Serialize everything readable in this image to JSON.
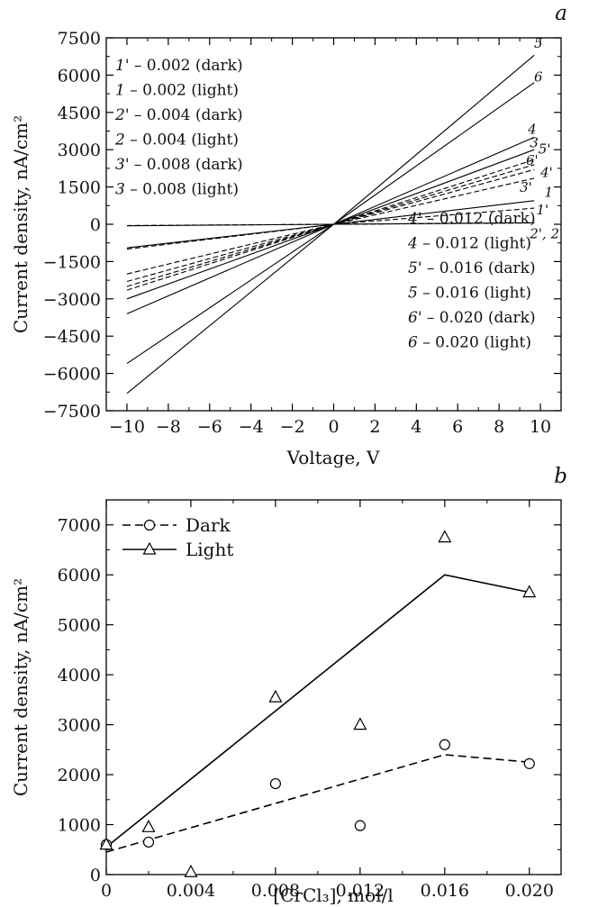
{
  "panel_a_label": "a",
  "panel_b_label": "b",
  "chart_data": [
    {
      "type": "line",
      "panel": "a",
      "xlabel": "Voltage, V",
      "ylabel": "Current density, nA/cm²",
      "xlim": [
        -11,
        11
      ],
      "ylim": [
        -7500,
        7500
      ],
      "xticks": [
        -10,
        -8,
        -6,
        -4,
        -2,
        0,
        2,
        4,
        6,
        8,
        10
      ],
      "xtick_labels": [
        "−10",
        "−8",
        "−6",
        "−4",
        "−2",
        "0",
        "2",
        "4",
        "6",
        "8",
        "10"
      ],
      "yticks": [
        -7500,
        -6000,
        -4500,
        -3000,
        -1500,
        0,
        1500,
        3000,
        4500,
        6000,
        7500
      ],
      "ytick_labels": [
        "−7500",
        "−6000",
        "−4500",
        "−3000",
        "−1500",
        "0",
        "1500",
        "3000",
        "4500",
        "6000",
        "7500"
      ],
      "legend_left": [
        {
          "curve": "1'",
          "text": " – 0.002 (dark)"
        },
        {
          "curve": "1",
          "text": " – 0.002 (light)"
        },
        {
          "curve": "2'",
          "text": " – 0.004 (dark)"
        },
        {
          "curve": "2",
          "text": " – 0.004 (light)"
        },
        {
          "curve": "3'",
          "text": " – 0.008 (dark)"
        },
        {
          "curve": "3",
          "text": " – 0.008 (light)"
        }
      ],
      "legend_right": [
        {
          "curve": "4'",
          "text": " – 0.012 (dark)"
        },
        {
          "curve": "4",
          "text": " – 0.012 (light)"
        },
        {
          "curve": "5'",
          "text": " – 0.016 (dark)"
        },
        {
          "curve": "5",
          "text": " – 0.016 (light)"
        },
        {
          "curve": "6'",
          "text": " – 0.020 (dark)"
        },
        {
          "curve": "6",
          "text": " – 0.020 (light)"
        }
      ],
      "series": [
        {
          "name": "1'",
          "style": "dashed",
          "x": [
            -10,
            0,
            9.7
          ],
          "y": [
            -1000,
            0,
            650
          ]
        },
        {
          "name": "1",
          "style": "solid",
          "x": [
            -10,
            0,
            9.7
          ],
          "y": [
            -950,
            0,
            950
          ]
        },
        {
          "name": "2'",
          "style": "dashed",
          "x": [
            -10,
            0,
            9.7
          ],
          "y": [
            -50,
            0,
            50
          ]
        },
        {
          "name": "2",
          "style": "solid",
          "x": [
            -10,
            0,
            9.7
          ],
          "y": [
            -60,
            0,
            60
          ]
        },
        {
          "name": "3'",
          "style": "dashed",
          "x": [
            -10,
            0,
            9.7
          ],
          "y": [
            -2000,
            0,
            1850
          ]
        },
        {
          "name": "3",
          "style": "solid",
          "x": [
            -10,
            0,
            9.7
          ],
          "y": [
            -3000,
            0,
            3000
          ]
        },
        {
          "name": "4'",
          "style": "dashed",
          "x": [
            -10,
            0,
            9.7
          ],
          "y": [
            -2300,
            0,
            2200
          ]
        },
        {
          "name": "4",
          "style": "solid",
          "x": [
            -10,
            0,
            9.7
          ],
          "y": [
            -3600,
            0,
            3500
          ]
        },
        {
          "name": "5'",
          "style": "dashed",
          "x": [
            -10,
            0,
            9.7
          ],
          "y": [
            -2650,
            0,
            2600
          ]
        },
        {
          "name": "5",
          "style": "solid",
          "x": [
            -10,
            0,
            9.7
          ],
          "y": [
            -6800,
            0,
            6800
          ]
        },
        {
          "name": "6'",
          "style": "dashed",
          "x": [
            -10,
            0,
            9.7
          ],
          "y": [
            -2500,
            0,
            2400
          ]
        },
        {
          "name": "6",
          "style": "solid",
          "x": [
            -10,
            0,
            9.7
          ],
          "y": [
            -5600,
            0,
            5700
          ]
        }
      ],
      "curve_labels": [
        {
          "text": "5",
          "x": 9.9,
          "y": 7100
        },
        {
          "text": "6",
          "x": 9.9,
          "y": 5750
        },
        {
          "text": "4",
          "x": 9.6,
          "y": 3650
        },
        {
          "text": "3",
          "x": 9.7,
          "y": 3100
        },
        {
          "text": "5'",
          "x": 10.2,
          "y": 2850
        },
        {
          "text": "6'",
          "x": 9.6,
          "y": 2400
        },
        {
          "text": "4'",
          "x": 10.3,
          "y": 1900
        },
        {
          "text": "3'",
          "x": 9.3,
          "y": 1300
        },
        {
          "text": "1",
          "x": 10.4,
          "y": 1100
        },
        {
          "text": "1'",
          "x": 10.1,
          "y": 400
        },
        {
          "text": "2', 2",
          "x": 10.2,
          "y": -560
        }
      ]
    },
    {
      "type": "scatter",
      "panel": "b",
      "xlabel": "[CrCl₃], mol/l",
      "ylabel": "Current density, nA/cm²",
      "xlim": [
        0,
        0.0215
      ],
      "ylim": [
        0,
        7500
      ],
      "xticks": [
        0,
        0.004,
        0.008,
        0.012,
        0.016,
        0.02
      ],
      "xtick_labels": [
        "0",
        "0.004",
        "0.008",
        "0.012",
        "0.016",
        "0.020"
      ],
      "yticks": [
        0,
        1000,
        2000,
        3000,
        4000,
        5000,
        6000,
        7000
      ],
      "ytick_labels": [
        "0",
        "1000",
        "2000",
        "3000",
        "4000",
        "5000",
        "6000",
        "7000"
      ],
      "legend_position": "top-left",
      "series": [
        {
          "name": "Dark",
          "marker": "circle",
          "line_style": "dashed",
          "x": [
            0,
            0.002,
            0.008,
            0.012,
            0.016,
            0.02
          ],
          "y": [
            600,
            650,
            1820,
            980,
            2600,
            2220
          ],
          "fit_x": [
            0,
            0.016,
            0.02
          ],
          "fit_y": [
            450,
            2400,
            2250
          ]
        },
        {
          "name": "Light",
          "marker": "triangle",
          "line_style": "solid",
          "x": [
            0,
            0.002,
            0.004,
            0.008,
            0.012,
            0.016,
            0.02
          ],
          "y": [
            600,
            950,
            50,
            3550,
            3000,
            6750,
            5650
          ],
          "fit_x": [
            0,
            0.016,
            0.02
          ],
          "fit_y": [
            550,
            6000,
            5650
          ]
        }
      ]
    }
  ]
}
